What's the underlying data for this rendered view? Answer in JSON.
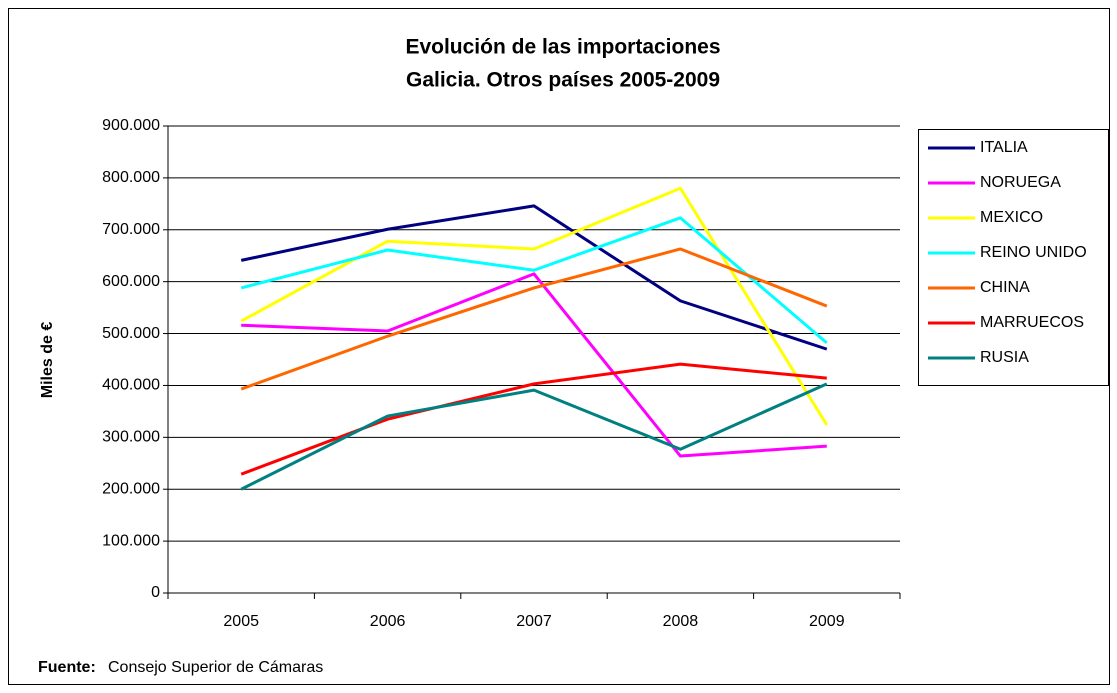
{
  "chart_data": {
    "type": "line",
    "title": [
      "Evolución de las importaciones",
      "Galicia. Otros países 2005-2009"
    ],
    "y_label": "Miles de €",
    "source_label": "Fuente:",
    "source": "Consejo Superior de Cámaras",
    "categories": [
      "2005",
      "2006",
      "2007",
      "2008",
      "2009"
    ],
    "series": [
      {
        "name": "ITALIA",
        "color": "#000080",
        "values": [
          641000,
          701000,
          746000,
          563000,
          470000
        ]
      },
      {
        "name": "NORUEGA",
        "color": "#ff00ff",
        "values": [
          516000,
          505000,
          615000,
          264000,
          283000
        ]
      },
      {
        "name": "MEXICO",
        "color": "#ffff00",
        "values": [
          524000,
          678000,
          663000,
          780000,
          324000
        ]
      },
      {
        "name": "REINO UNIDO",
        "color": "#00ffff",
        "values": [
          588000,
          661000,
          622000,
          723000,
          482000
        ]
      },
      {
        "name": "CHINA",
        "color": "#ff6600",
        "values": [
          393000,
          495000,
          588000,
          663000,
          553000
        ]
      },
      {
        "name": "MARRUECOS",
        "color": "#ff0000",
        "values": [
          229000,
          335000,
          403000,
          441000,
          414000
        ]
      },
      {
        "name": "RUSIA",
        "color": "#008080",
        "values": [
          200000,
          341000,
          391000,
          277000,
          403000
        ]
      }
    ],
    "ylim": [
      0,
      900000
    ],
    "yticks": [
      0,
      {
        "value": 100000,
        "label": "100.000"
      },
      {
        "value": 200000,
        "label": "200.000"
      },
      {
        "value": 300000,
        "label": "300.000"
      },
      {
        "value": 400000,
        "label": "400.000"
      },
      {
        "value": 500000,
        "label": "500.000"
      },
      {
        "value": 600000,
        "label": "600.000"
      },
      {
        "value": 700000,
        "label": "700.000"
      },
      {
        "value": 800000,
        "label": "800.000"
      },
      {
        "value": 900000,
        "label": "900.000"
      }
    ],
    "grid": true,
    "legend": "right"
  }
}
